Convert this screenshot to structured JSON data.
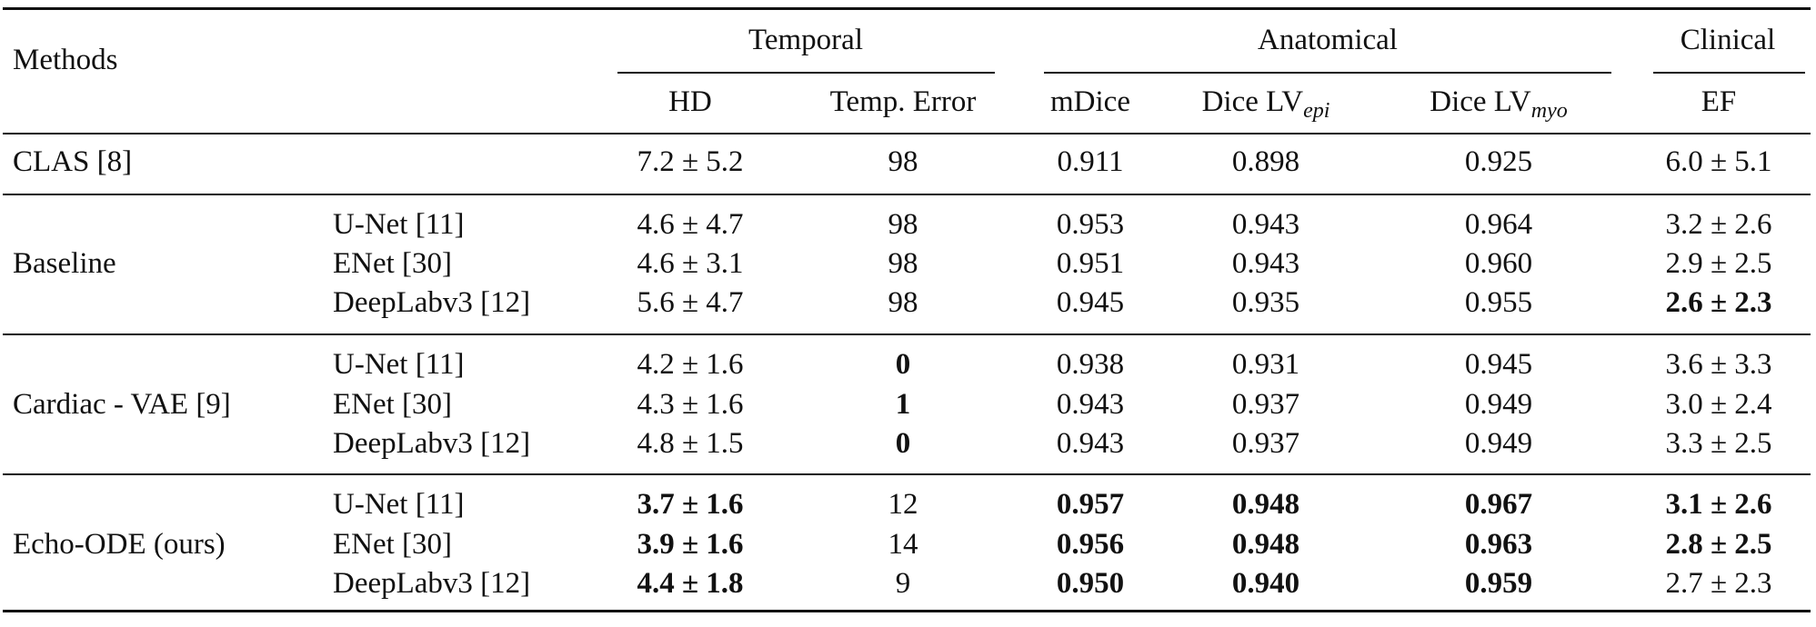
{
  "header": {
    "methods": "Methods",
    "groups": {
      "temporal": "Temporal",
      "anatomical": "Anatomical",
      "clinical": "Clinical"
    },
    "cols": {
      "hd": "HD",
      "temp_error": "Temp. Error",
      "mdice": "mDice",
      "dice_epi": "Dice LV",
      "dice_epi_sub": "epi",
      "dice_myo": "Dice LV",
      "dice_myo_sub": "myo",
      "ef": "EF"
    }
  },
  "rows": {
    "clas": {
      "method": "CLAS [8]",
      "hd": "7.2 ± 5.2",
      "temp": "98",
      "mdice": "0.911",
      "epi": "0.898",
      "myo": "0.925",
      "ef": "6.0 ± 5.1"
    },
    "baseline": {
      "method": "Baseline",
      "r1": {
        "backbone": "U-Net [11]",
        "hd": "4.6 ± 4.7",
        "temp": "98",
        "mdice": "0.953",
        "epi": "0.943",
        "myo": "0.964",
        "ef": "3.2 ± 2.6"
      },
      "r2": {
        "backbone": "ENet [30]",
        "hd": "4.6 ± 3.1",
        "temp": "98",
        "mdice": "0.951",
        "epi": "0.943",
        "myo": "0.960",
        "ef": "2.9 ± 2.5"
      },
      "r3": {
        "backbone": "DeepLabv3 [12]",
        "hd": "5.6 ± 4.7",
        "temp": "98",
        "mdice": "0.945",
        "epi": "0.935",
        "myo": "0.955",
        "ef": "2.6 ± 2.3"
      }
    },
    "vae": {
      "method": "Cardiac - VAE [9]",
      "r1": {
        "backbone": "U-Net [11]",
        "hd": "4.2 ± 1.6",
        "temp": "0",
        "mdice": "0.938",
        "epi": "0.931",
        "myo": "0.945",
        "ef": "3.6 ± 3.3"
      },
      "r2": {
        "backbone": "ENet [30]",
        "hd": "4.3 ± 1.6",
        "temp": "1",
        "mdice": "0.943",
        "epi": "0.937",
        "myo": "0.949",
        "ef": "3.0 ± 2.4"
      },
      "r3": {
        "backbone": "DeepLabv3 [12]",
        "hd": "4.8 ± 1.5",
        "temp": "0",
        "mdice": "0.943",
        "epi": "0.937",
        "myo": "0.949",
        "ef": "3.3 ± 2.5"
      }
    },
    "echo": {
      "method": "Echo-ODE (ours)",
      "r1": {
        "backbone": "U-Net [11]",
        "hd": "3.7 ± 1.6",
        "temp": "12",
        "mdice": "0.957",
        "epi": "0.948",
        "myo": "0.967",
        "ef": "3.1 ± 2.6"
      },
      "r2": {
        "backbone": "ENet [30]",
        "hd": "3.9 ± 1.6",
        "temp": "14",
        "mdice": "0.956",
        "epi": "0.948",
        "myo": "0.963",
        "ef": "2.8 ± 2.5"
      },
      "r3": {
        "backbone": "DeepLabv3 [12]",
        "hd": "4.4 ± 1.8",
        "temp": "9",
        "mdice": "0.950",
        "epi": "0.940",
        "myo": "0.959",
        "ef": "2.7 ± 2.3"
      }
    }
  }
}
